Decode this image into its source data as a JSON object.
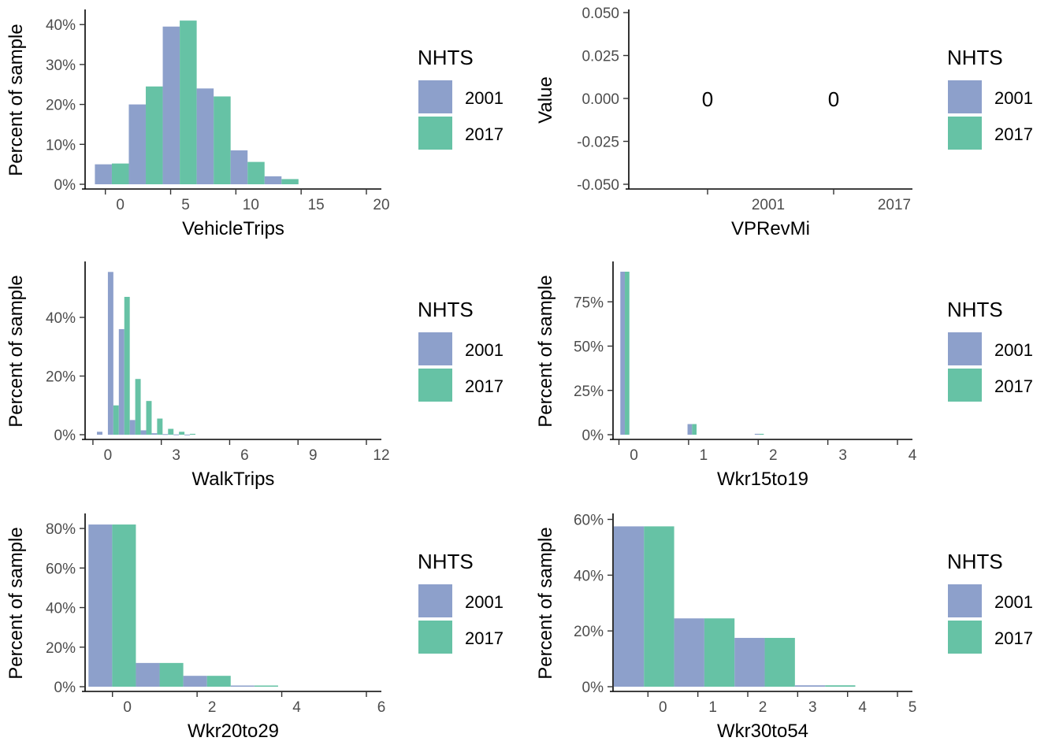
{
  "colors": {
    "2001": "#8da0cb",
    "2017": "#66c2a5"
  },
  "chart_data": [
    {
      "type": "bar",
      "xlabel": "VehicleTrips",
      "ylabel": "Percent of sample",
      "xticks": [
        0,
        5,
        10,
        15,
        20
      ],
      "yticks": [
        "0%",
        "10%",
        "20%",
        "30%",
        "40%"
      ],
      "xlim": [
        -2.7,
        20
      ],
      "ylim": [
        0,
        0.43
      ],
      "bin_width": 2.6,
      "bin_centers": [
        -0.65,
        1.95,
        4.55,
        7.15,
        9.75,
        12.35
      ],
      "series": [
        {
          "name": "2001",
          "values": [
            0.05,
            0.2,
            0.395,
            0.24,
            0.085,
            0.02
          ]
        },
        {
          "name": "2017",
          "values": [
            0.052,
            0.245,
            0.41,
            0.22,
            0.056,
            0.013
          ]
        }
      ],
      "legend": {
        "title": "NHTS",
        "entries": [
          "2001",
          "2017"
        ],
        "position": "right"
      }
    },
    {
      "type": "bar",
      "xlabel": "VPRevMi",
      "ylabel": "Value",
      "categories": [
        "2001",
        "2017"
      ],
      "values": [
        0,
        0
      ],
      "data_labels": [
        "0",
        "0"
      ],
      "yticks": [
        "0.050",
        "0.025",
        "0.000",
        "-0.025",
        "-0.050"
      ],
      "ylim": [
        -0.05,
        0.05
      ],
      "legend": {
        "title": "NHTS",
        "entries": [
          "2001",
          "2017"
        ],
        "position": "right"
      }
    },
    {
      "type": "bar",
      "xlabel": "WalkTrips",
      "ylabel": "Percent of sample",
      "xticks": [
        0,
        3,
        6,
        9,
        12
      ],
      "yticks": [
        "0%",
        "20%",
        "40%"
      ],
      "xlim": [
        -1.0,
        12.0
      ],
      "ylim": [
        0,
        0.58
      ],
      "bin_width": 0.48,
      "bin_centers": [
        -0.24,
        0.24,
        0.72,
        1.2,
        1.68,
        2.16,
        2.64,
        3.12,
        3.6
      ],
      "series": [
        {
          "name": "2001",
          "values": [
            0.01,
            0.555,
            0.36,
            0.05,
            0.015,
            0.005,
            0.002,
            0.001,
            0.0005
          ]
        },
        {
          "name": "2017",
          "values": [
            0.0,
            0.1,
            0.47,
            0.19,
            0.115,
            0.055,
            0.02,
            0.01,
            0.003
          ]
        }
      ],
      "legend": {
        "title": "NHTS",
        "entries": [
          "2001",
          "2017"
        ],
        "position": "right"
      }
    },
    {
      "type": "bar",
      "xlabel": "Wkr15to19",
      "ylabel": "Percent of sample",
      "xticks": [
        0,
        1,
        2,
        3,
        4
      ],
      "yticks": [
        "0%",
        "25%",
        "50%",
        "75%"
      ],
      "xlim": [
        -0.3,
        4.0
      ],
      "ylim": [
        0,
        0.96
      ],
      "bin_width": 0.13,
      "bin_centers": [
        -0.13,
        0.835,
        1.8
      ],
      "series": [
        {
          "name": "2001",
          "values": [
            0.92,
            0.06,
            0.005
          ]
        },
        {
          "name": "2017",
          "values": [
            0.92,
            0.06,
            0.005
          ]
        }
      ],
      "legend": {
        "title": "NHTS",
        "entries": [
          "2001",
          "2017"
        ],
        "position": "right"
      }
    },
    {
      "type": "bar",
      "xlabel": "Wkr20to29",
      "ylabel": "Percent of sample",
      "xticks": [
        0,
        2,
        4,
        6
      ],
      "yticks": [
        "0%",
        "20%",
        "40%",
        "60%",
        "80%"
      ],
      "xlim": [
        -1.0,
        6.0
      ],
      "ylim": [
        0,
        0.86
      ],
      "bin_width": 1.12,
      "bin_centers": [
        -0.36,
        0.76,
        1.88,
        3.0
      ],
      "series": [
        {
          "name": "2001",
          "values": [
            0.82,
            0.12,
            0.055,
            0.006
          ]
        },
        {
          "name": "2017",
          "values": [
            0.82,
            0.12,
            0.055,
            0.006
          ]
        }
      ],
      "legend": {
        "title": "NHTS",
        "entries": [
          "2001",
          "2017"
        ],
        "position": "right"
      }
    },
    {
      "type": "bar",
      "xlabel": "Wkr30to54",
      "ylabel": "Percent of sample",
      "xticks": [
        0,
        1,
        2,
        3,
        4,
        5
      ],
      "yticks": [
        "0%",
        "20%",
        "40%",
        "60%"
      ],
      "xlim": [
        -1.0,
        5.0
      ],
      "ylim": [
        0,
        0.61
      ],
      "bin_width": 1.21,
      "bin_centers": [
        -0.38,
        0.83,
        2.04,
        3.25
      ],
      "series": [
        {
          "name": "2001",
          "values": [
            0.575,
            0.245,
            0.175,
            0.005
          ]
        },
        {
          "name": "2017",
          "values": [
            0.575,
            0.245,
            0.175,
            0.005
          ]
        }
      ],
      "legend": {
        "title": "NHTS",
        "entries": [
          "2001",
          "2017"
        ],
        "position": "right"
      }
    }
  ]
}
